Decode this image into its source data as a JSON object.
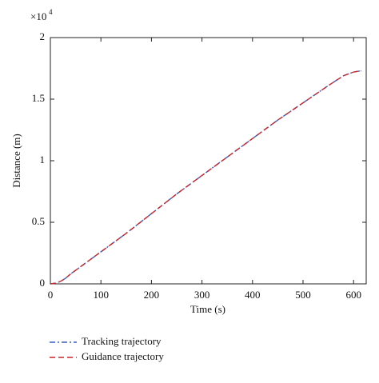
{
  "chart_data": {
    "type": "line",
    "x_label": "Time (s)",
    "y_label": "Distance (m)",
    "y_scale_base": "×10",
    "y_scale_exponent": "4",
    "x": [
      0,
      10,
      20,
      30,
      40,
      50,
      100,
      150,
      200,
      250,
      300,
      350,
      400,
      450,
      500,
      550,
      580,
      600,
      615
    ],
    "series": [
      {
        "name": "Tracking trajectory",
        "color": "#3a5fc4",
        "style": "dashdot",
        "values": [
          0,
          0.005,
          0.02,
          0.045,
          0.08,
          0.11,
          0.26,
          0.41,
          0.57,
          0.73,
          0.88,
          1.03,
          1.18,
          1.33,
          1.47,
          1.61,
          1.69,
          1.72,
          1.73
        ]
      },
      {
        "name": "Guidance trajectory",
        "color": "#c8262b",
        "style": "dashed",
        "values": [
          0,
          0.005,
          0.02,
          0.045,
          0.08,
          0.11,
          0.26,
          0.41,
          0.57,
          0.73,
          0.88,
          1.03,
          1.18,
          1.33,
          1.47,
          1.61,
          1.69,
          1.72,
          1.73
        ]
      }
    ],
    "xlim": [
      0,
      625
    ],
    "xticks": [
      0,
      100,
      200,
      300,
      400,
      500,
      600
    ],
    "ylim": [
      0,
      2
    ],
    "yticks": [
      0,
      0.5,
      1,
      1.5,
      2
    ],
    "grid": false,
    "legend": "below-left"
  }
}
